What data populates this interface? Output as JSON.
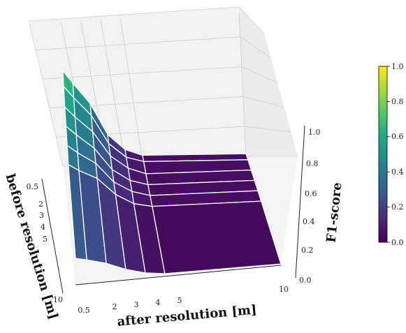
{
  "chart_data": {
    "type": "surface3d",
    "colormap": "viridis",
    "xlabel": "after resolution [m]",
    "ylabel": "before resolution [m]",
    "zlabel": "F1-score",
    "x_ticks": [
      "0.5",
      "2",
      "3",
      "4",
      "5",
      "10"
    ],
    "y_ticks": [
      "0.5",
      "2",
      "3",
      "4",
      "5",
      "10"
    ],
    "z_ticks": [
      "0.0",
      "0.2",
      "0.4",
      "0.6",
      "0.8",
      "1.0"
    ],
    "colorbar_ticks": [
      "0.0",
      "0.2",
      "0.4",
      "0.6",
      "0.8",
      "1.0"
    ],
    "zlim": [
      0,
      1
    ],
    "x": [
      0.5,
      1,
      2,
      3,
      4,
      5,
      10
    ],
    "y": [
      0.5,
      1,
      2,
      3,
      4,
      5,
      10
    ],
    "z": [
      [
        0.72,
        0.62,
        0.46,
        0.22,
        0.1,
        0.05,
        0.02
      ],
      [
        0.65,
        0.56,
        0.42,
        0.2,
        0.09,
        0.05,
        0.02
      ],
      [
        0.58,
        0.5,
        0.38,
        0.19,
        0.09,
        0.04,
        0.02
      ],
      [
        0.52,
        0.45,
        0.34,
        0.17,
        0.08,
        0.04,
        0.02
      ],
      [
        0.46,
        0.4,
        0.31,
        0.16,
        0.08,
        0.04,
        0.02
      ],
      [
        0.4,
        0.35,
        0.28,
        0.15,
        0.07,
        0.04,
        0.02
      ],
      [
        0.2,
        0.18,
        0.14,
        0.08,
        0.04,
        0.02,
        0.01
      ]
    ],
    "grid": true,
    "colorbar": "right"
  }
}
